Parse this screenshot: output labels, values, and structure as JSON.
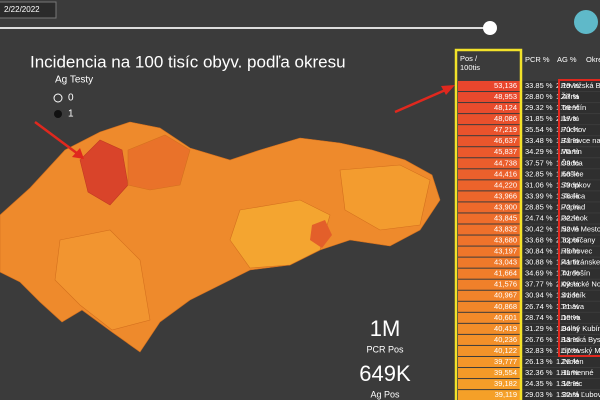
{
  "header": {
    "date": "2/22/2022",
    "title": "Incidencia na 100 tisíc obyv. podľa okresu"
  },
  "legend": {
    "title": "Ag Testy",
    "items": [
      "0",
      "1"
    ]
  },
  "kpis": [
    {
      "value": "1M",
      "label": "PCR Pos"
    },
    {
      "value": "649K",
      "label": "Ag Pos"
    }
  ],
  "table": {
    "columns": [
      [
        "Pos /",
        "100tis"
      ],
      "PCR %",
      "AG %",
      "Okres"
    ],
    "rows": [
      [
        "53,136",
        "33.85 %",
        "2.19 %",
        "Považská By"
      ],
      [
        "48,953",
        "28.80 %",
        "1.47 %",
        "Žilina"
      ],
      [
        "48,124",
        "29.32 %",
        "1.66 %",
        "Trenčín"
      ],
      [
        "48,086",
        "31.85 %",
        "2.17 %",
        "Ilava"
      ],
      [
        "47,219",
        "35.54 %",
        "1.70 %",
        "Púchov"
      ],
      [
        "46,637",
        "33.48 %",
        "1.77 %",
        "Bánovce nad"
      ],
      [
        "45,837",
        "34.29 %",
        "1.70 %",
        "Martin"
      ],
      [
        "44,738",
        "37.57 %",
        "1.99 %",
        "Čadca"
      ],
      [
        "44,416",
        "32.85 %",
        "1.58 %",
        "Košice"
      ],
      [
        "44,220",
        "31.06 %",
        "1.79 %",
        "Stropkov"
      ],
      [
        "43,966",
        "33.99 %",
        "1.76 %",
        "Skalica"
      ],
      [
        "43,900",
        "28.85 %",
        "1.72 %",
        "Poprad"
      ],
      [
        "43,845",
        "24.74 %",
        "2.32 %",
        "Pezinok"
      ],
      [
        "43,832",
        "30.42 %",
        "1.52 %",
        "Nové Mesto"
      ],
      [
        "43,680",
        "33.68 %",
        "2.32 %",
        "Topoľčany"
      ],
      [
        "43,197",
        "30.84 %",
        "1.76 %",
        "Hlohovec"
      ],
      [
        "43,043",
        "30.88 %",
        "1.41 %",
        "Partizánske"
      ],
      [
        "41,664",
        "34.69 %",
        "1.41 %",
        "Tvrdošín"
      ],
      [
        "41,576",
        "37.77 %",
        "2.09 %",
        "Kysucké Nov"
      ],
      [
        "40,967",
        "30.94 %",
        "1.41 %",
        "Svidník"
      ],
      [
        "40,868",
        "26.74 %",
        "1.21 %",
        "Trnava"
      ],
      [
        "40,601",
        "28.74 %",
        "1.10 %",
        "Detva"
      ],
      [
        "40,419",
        "31.29 %",
        "1.84 %",
        "Dolný Kubín"
      ],
      [
        "40,236",
        "26.76 %",
        "1.13 %",
        "Banská Byst"
      ],
      [
        "40,122",
        "32.83 %",
        "1.57 %",
        "Liptovský Mi"
      ],
      [
        "39,777",
        "26.13 %",
        "1.26 %",
        "Zvolen"
      ],
      [
        "39,554",
        "32.36 %",
        "1.11 %",
        "Humenné"
      ],
      [
        "39,182",
        "24.35 %",
        "1.12 %",
        "Senec"
      ],
      [
        "39,119",
        "29.03 %",
        "1.22 %",
        "Stará Ľubov"
      ]
    ]
  }
}
